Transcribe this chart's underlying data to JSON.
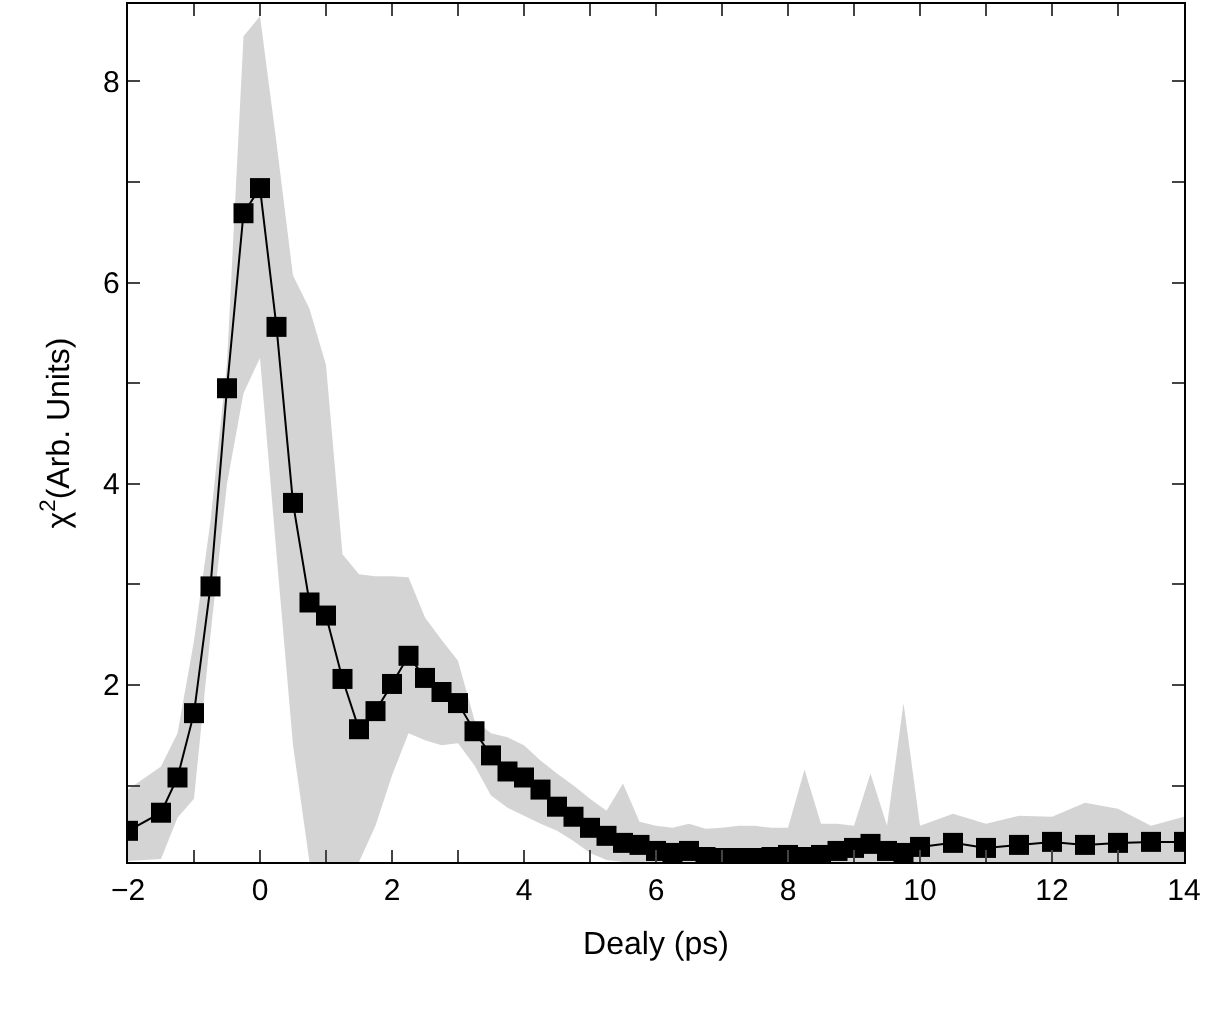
{
  "chart_data": {
    "type": "line",
    "xlabel": "Dealy (ps)",
    "ylabel": "χ$^{2}$(Arb. Units)",
    "xlim": [
      -2,
      14
    ],
    "ylim": [
      0.24,
      8.77
    ],
    "xticks": [
      -2,
      {
        "value": -1,
        "label": null
      },
      0,
      {
        "value": 1,
        "label": null
      },
      2,
      {
        "value": 3,
        "label": null
      },
      4,
      {
        "value": 5,
        "label": null
      },
      6,
      {
        "value": 7,
        "label": null
      },
      8,
      {
        "value": 9,
        "label": null
      },
      10,
      {
        "value": 11,
        "label": null
      },
      12,
      {
        "value": 13,
        "label": null
      },
      14
    ],
    "yticks": [
      {
        "value": 1,
        "label": null
      },
      2,
      {
        "value": 3,
        "label": null
      },
      4,
      {
        "value": 5,
        "label": null
      },
      6,
      {
        "value": 7,
        "label": null
      },
      8
    ],
    "grid": false,
    "marker": "square",
    "line_style": "solid",
    "series": [
      {
        "color": "#000000",
        "x": [
          -2,
          -1.5,
          -1.25,
          -1,
          -0.75,
          -0.5,
          -0.25,
          0,
          0.25,
          0.5,
          0.75,
          1,
          1.25,
          1.5,
          1.75,
          2,
          2.25,
          2.5,
          2.75,
          3,
          3.25,
          3.5,
          3.75,
          4,
          4.25,
          4.5,
          4.75,
          5,
          5.25,
          5.5,
          5.75,
          6,
          6.25,
          6.5,
          6.75,
          7,
          7.25,
          7.5,
          7.75,
          8,
          8.25,
          8.5,
          8.75,
          9,
          9.25,
          9.5,
          9.75,
          10,
          10.5,
          11,
          11.5,
          12,
          12.5,
          13,
          13.5,
          14
        ],
        "values": [
          0.55,
          0.73,
          1.08,
          1.72,
          2.98,
          4.95,
          6.69,
          6.94,
          5.56,
          3.81,
          2.82,
          2.69,
          2.06,
          1.56,
          1.74,
          2.01,
          2.29,
          2.07,
          1.93,
          1.82,
          1.54,
          1.3,
          1.14,
          1.08,
          0.96,
          0.79,
          0.69,
          0.58,
          0.5,
          0.43,
          0.41,
          0.35,
          0.33,
          0.35,
          0.29,
          0.28,
          0.28,
          0.28,
          0.29,
          0.31,
          0.29,
          0.31,
          0.35,
          0.38,
          0.42,
          0.35,
          0.33,
          0.39,
          0.43,
          0.38,
          0.41,
          0.44,
          0.41,
          0.43,
          0.44,
          0.44
        ],
        "lower": [
          0.25,
          0.27,
          0.68,
          0.87,
          2.5,
          4.0,
          4.9,
          5.25,
          3.3,
          1.4,
          0.24,
          0.24,
          0.24,
          0.24,
          0.6,
          1.1,
          1.52,
          1.45,
          1.4,
          1.42,
          1.2,
          0.9,
          0.78,
          0.7,
          0.62,
          0.55,
          0.45,
          0.33,
          0.26,
          0.24,
          0.24,
          0.24,
          0.24,
          0.24,
          0.24,
          0.24,
          0.24,
          0.24,
          0.24,
          0.24,
          0.24,
          0.24,
          0.24,
          0.24,
          0.24,
          0.24,
          0.24,
          0.24,
          0.24,
          0.24,
          0.24,
          0.24,
          0.24,
          0.24,
          0.24,
          0.24
        ],
        "upper": [
          0.96,
          1.19,
          1.52,
          2.44,
          3.63,
          5.2,
          8.45,
          8.65,
          7.39,
          6.07,
          5.74,
          5.18,
          3.3,
          3.1,
          3.08,
          3.08,
          3.07,
          2.67,
          2.45,
          2.24,
          1.65,
          1.52,
          1.48,
          1.4,
          1.25,
          1.12,
          1.0,
          0.87,
          0.75,
          1.02,
          0.64,
          0.6,
          0.58,
          0.62,
          0.57,
          0.58,
          0.6,
          0.6,
          0.58,
          0.58,
          1.16,
          0.62,
          0.62,
          0.6,
          1.12,
          0.6,
          1.82,
          0.6,
          0.72,
          0.62,
          0.7,
          0.69,
          0.83,
          0.77,
          0.6,
          0.69
        ]
      }
    ]
  }
}
